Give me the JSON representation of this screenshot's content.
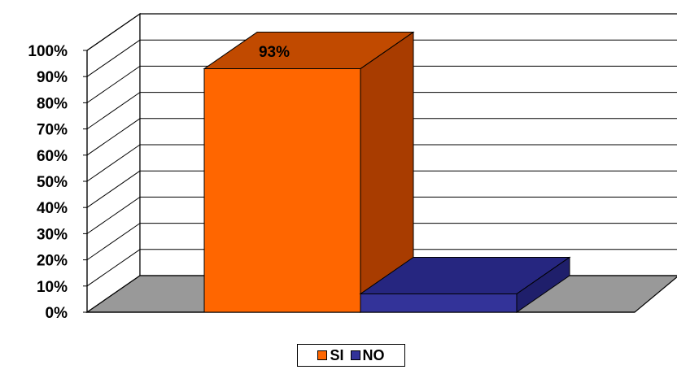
{
  "chart_data": {
    "type": "bar",
    "three_d": true,
    "categories": [
      "SI",
      "NO"
    ],
    "values": [
      93,
      7
    ],
    "data_labels": [
      "93%",
      ""
    ],
    "colors": [
      "#ff6600",
      "#333399"
    ],
    "side_colors": [
      "#a83c00",
      "#1f1f6b"
    ],
    "top_colors": [
      "#c14a00",
      "#262680"
    ],
    "ylim": [
      0,
      100
    ],
    "yticks": [
      "0%",
      "10%",
      "20%",
      "30%",
      "40%",
      "50%",
      "60%",
      "70%",
      "80%",
      "90%",
      "100%"
    ],
    "grid": true,
    "floor_color": "#999999",
    "legend": {
      "position": "bottom",
      "entries": [
        "SI",
        "NO"
      ]
    }
  }
}
